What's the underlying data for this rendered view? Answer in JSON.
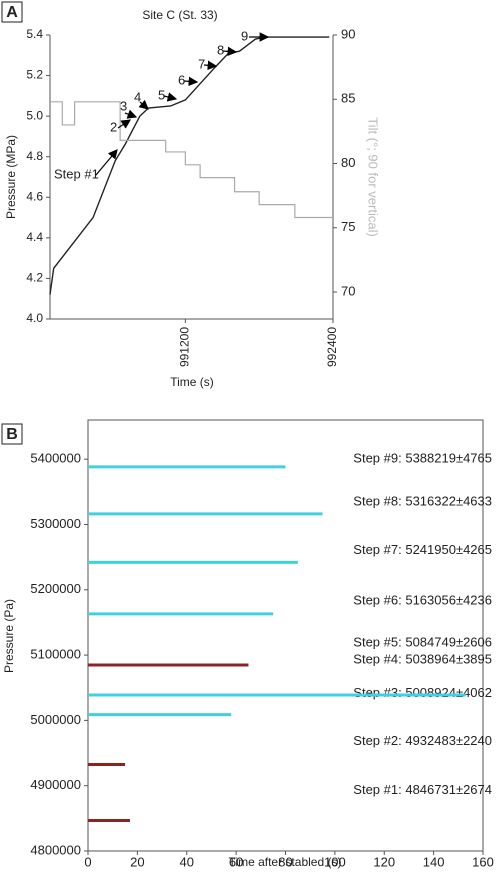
{
  "chart_data": [
    {
      "type": "line",
      "panel_label": "A",
      "title": "Site C (St. 33)",
      "xlabel": "Time (s)",
      "ylabel": "Pressure (MPa)",
      "y2label": "Tilt (°; 90 for vertical)",
      "x": [
        990100,
        990130,
        990450,
        990630,
        990710,
        990770,
        990830,
        990900,
        991080,
        991200,
        991320,
        991440,
        991550,
        991640,
        991770,
        991850,
        992370
      ],
      "series": [
        {
          "color": "#222222",
          "values": [
            4.12,
            4.25,
            4.5,
            4.78,
            4.86,
            4.93,
            5.0,
            5.04,
            5.05,
            5.08,
            5.16,
            5.24,
            5.31,
            5.32,
            5.38,
            5.39,
            5.39
          ]
        },
        {
          "color": "#aaaaaa",
          "axis": "y2",
          "x": [
            990100,
            990200,
            990200,
            990300,
            990300,
            990670,
            990670,
            991040,
            991040,
            991200,
            991200,
            991320,
            991320,
            991600,
            991600,
            991800,
            991800,
            992090,
            992090,
            992400
          ],
          "values": [
            84.8,
            84.8,
            83.0,
            83.0,
            84.8,
            84.8,
            81.8,
            81.8,
            80.9,
            80.9,
            79.9,
            79.9,
            78.9,
            78.9,
            77.8,
            77.8,
            76.8,
            76.8,
            75.8,
            75.8
          ]
        }
      ],
      "xlim": [
        990100,
        992400
      ],
      "xticks": [
        991200,
        992400
      ],
      "ylim": [
        4.0,
        5.4
      ],
      "yticks": [
        {
          "value": 4,
          "label": "4.0"
        },
        4.2,
        4.4,
        4.6,
        4.8,
        {
          "value": 5,
          "label": "5.0"
        },
        5.2,
        5.4
      ],
      "y2lim": [
        67.9,
        90
      ],
      "y2ticks": [
        70,
        75,
        80,
        85,
        90
      ],
      "annotations": [
        "Step #1",
        "2",
        "3",
        "4",
        "5",
        "6",
        "7",
        "8",
        "9"
      ]
    },
    {
      "type": "segment",
      "panel_label": "B",
      "xlabel": "Time after stabled (s)",
      "ylabel": "Pressure (Pa)",
      "values": [
        4846731,
        4932483,
        5008924,
        5038964,
        5084749,
        5163056,
        5241950,
        5316322,
        5388219
      ],
      "errors": [
        2674,
        2240,
        4062,
        3895,
        2606,
        4236,
        4265,
        4633,
        4765
      ],
      "x_end": [
        17,
        15,
        58,
        153,
        65,
        75,
        85,
        95,
        80
      ],
      "value_labels": [
        "Step #1: 4846731±2674",
        "Step #2: 4932483±2240",
        "Step #3: 5008924±4062",
        "Step #4: 5038964±3895",
        "Step #5: 5084749±2606",
        "Step #6: 5163056±4236",
        "Step #7: 5241950±4265",
        "Step #8: 5316322±4633",
        "Step #9: 5388219±4765"
      ],
      "colors": [
        "#8b2323",
        "#8b2323",
        "#40d0e0",
        "#40d0e0",
        "#8b2323",
        "#40d0e0",
        "#40d0e0",
        "#40d0e0",
        "#40d0e0"
      ],
      "xlim": [
        0,
        160
      ],
      "xticks": [
        0,
        20,
        40,
        60,
        80,
        100,
        120,
        140,
        160
      ],
      "ylim": [
        4800000,
        5460000
      ],
      "yticks": [
        4800000,
        4900000,
        5000000,
        5100000,
        5200000,
        5300000,
        5400000
      ]
    }
  ]
}
